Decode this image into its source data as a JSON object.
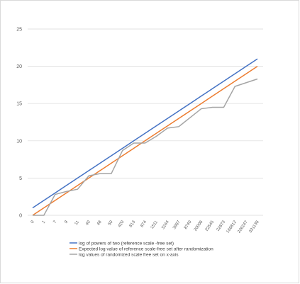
{
  "chart_data": {
    "type": "line",
    "title": "",
    "xlabel": "",
    "ylabel": "",
    "ylim": [
      0,
      25
    ],
    "yticks": [
      0,
      5,
      10,
      15,
      20,
      25
    ],
    "grid": true,
    "legend_position": "bottom-left",
    "categories": [
      "0",
      "1",
      "7",
      "9",
      "11",
      "40",
      "48",
      "50",
      "420",
      "813",
      "874",
      "1511",
      "3244",
      "3987",
      "8740",
      "20006",
      "22545",
      "22873",
      "166812",
      "226247",
      "331136"
    ],
    "series": [
      {
        "name": "log of powers of two (reference scale -free set)",
        "color": "#4472C4",
        "values": [
          1,
          2,
          3,
          4,
          5,
          6,
          7,
          8,
          9,
          10,
          11,
          12,
          13,
          14,
          15,
          16,
          17,
          18,
          19,
          20,
          21
        ]
      },
      {
        "name": "Expected log value of reference scale-free set after randomization",
        "color": "#ED7D31",
        "values": [
          0,
          1,
          2,
          3,
          4,
          5,
          6,
          7,
          8,
          9,
          10,
          11,
          12,
          13,
          14,
          15,
          16,
          17,
          18,
          19,
          20
        ]
      },
      {
        "name": "log values of randomized scale free set on x-axis",
        "color": "#A5A5A5",
        "values": [
          0,
          0,
          2.8,
          3.2,
          3.5,
          5.3,
          5.6,
          5.6,
          8.7,
          9.7,
          9.7,
          10.6,
          11.7,
          11.9,
          13.1,
          14.3,
          14.5,
          14.5,
          17.3,
          17.8,
          18.3
        ]
      }
    ]
  }
}
